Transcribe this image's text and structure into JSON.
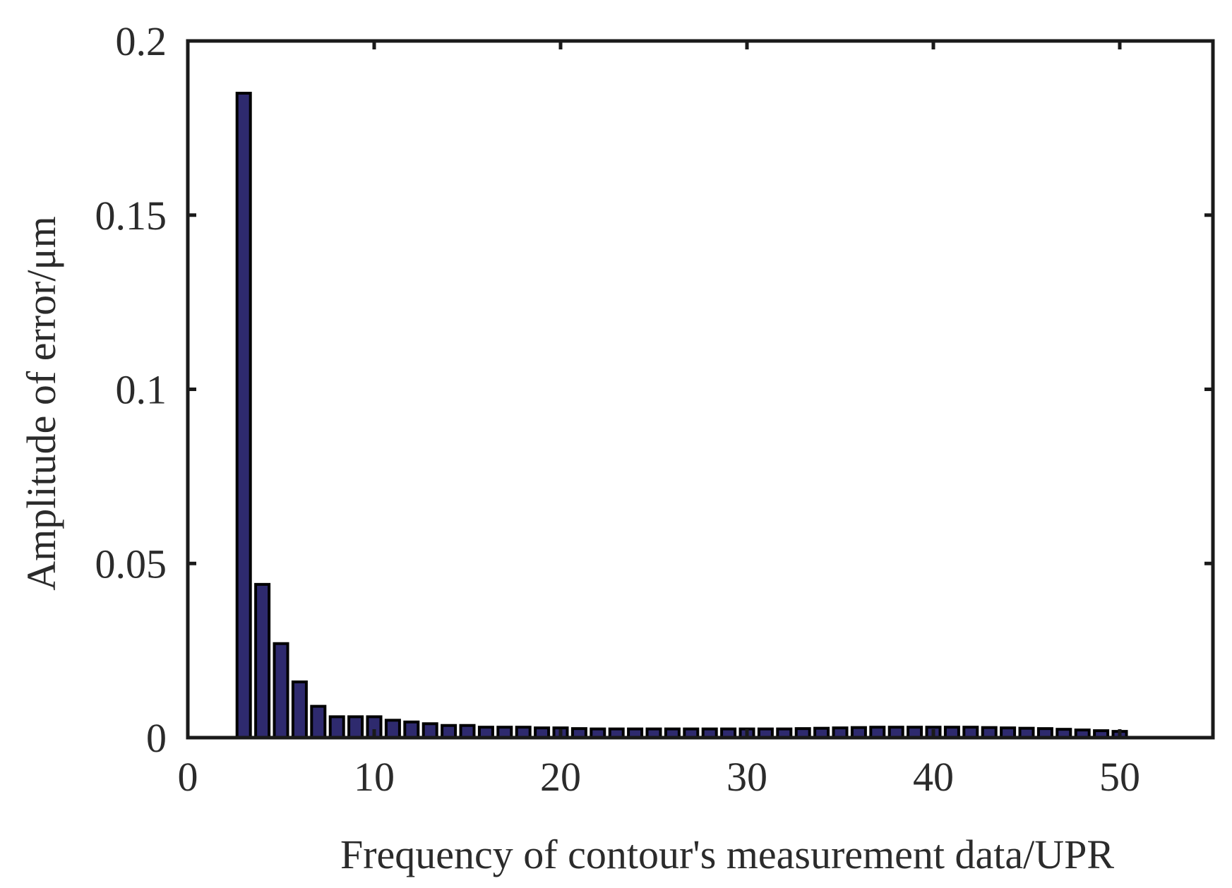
{
  "chart_data": {
    "type": "bar",
    "xlabel": "Frequency of contour's measurement data/UPR",
    "ylabel": "Amplitude of error/μm",
    "xlim": [
      0,
      55
    ],
    "ylim": [
      0,
      0.2
    ],
    "x_ticks": [
      0,
      10,
      20,
      30,
      40,
      50
    ],
    "x_tick_labels": [
      "0",
      "10",
      "20",
      "30",
      "40",
      "50"
    ],
    "y_ticks": [
      0,
      0.05,
      0.1,
      0.15,
      0.2
    ],
    "y_tick_labels": [
      "0",
      "0.05",
      "0.1",
      "0.15",
      "0.2"
    ],
    "grid": false,
    "bar_color": "#2e2a6e",
    "edge_color": "#000000",
    "x": [
      3,
      4,
      5,
      6,
      7,
      8,
      9,
      10,
      11,
      12,
      13,
      14,
      15,
      16,
      17,
      18,
      19,
      20,
      21,
      22,
      23,
      24,
      25,
      26,
      27,
      28,
      29,
      30,
      31,
      32,
      33,
      34,
      35,
      36,
      37,
      38,
      39,
      40,
      41,
      42,
      43,
      44,
      45,
      46,
      47,
      48,
      49,
      50
    ],
    "values": [
      0.185,
      0.044,
      0.027,
      0.016,
      0.009,
      0.006,
      0.006,
      0.006,
      0.005,
      0.0045,
      0.004,
      0.0035,
      0.0035,
      0.003,
      0.003,
      0.003,
      0.0028,
      0.0028,
      0.0026,
      0.0025,
      0.0025,
      0.0025,
      0.0025,
      0.0025,
      0.0025,
      0.0025,
      0.0025,
      0.0025,
      0.0025,
      0.0025,
      0.0026,
      0.0027,
      0.0028,
      0.0029,
      0.003,
      0.003,
      0.003,
      0.003,
      0.003,
      0.003,
      0.0029,
      0.0028,
      0.0027,
      0.0026,
      0.0024,
      0.0022,
      0.002,
      0.0018
    ]
  }
}
